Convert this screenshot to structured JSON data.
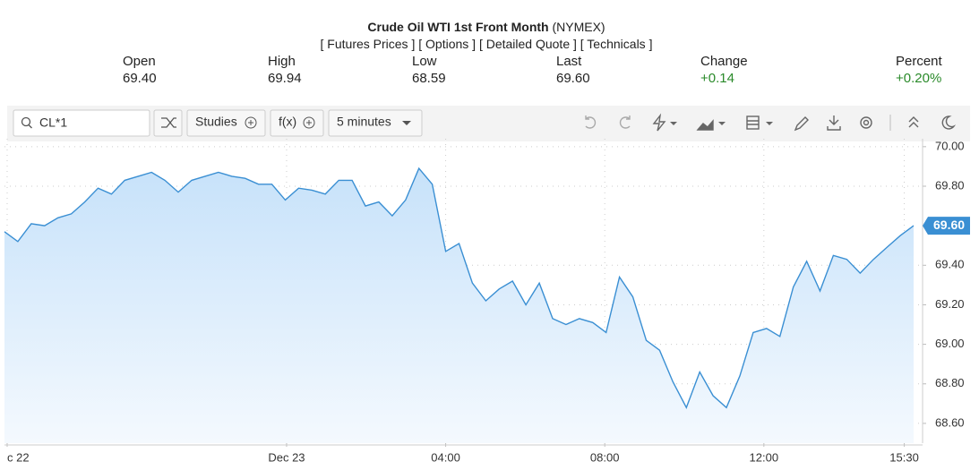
{
  "header": {
    "title": "Crude Oil WTI 1st Front Month",
    "exchange": "(NYMEX)",
    "links": [
      "[ Futures Prices ]",
      "[ Options ]",
      "[ Detailed Quote ]",
      "[ Technicals ]"
    ]
  },
  "quote": [
    {
      "label": "Open",
      "value": "69.40"
    },
    {
      "label": "High",
      "value": "69.94"
    },
    {
      "label": "Low",
      "value": "68.59"
    },
    {
      "label": "Last",
      "value": "69.60"
    },
    {
      "label": "Change",
      "value": "+0.14"
    },
    {
      "label": "Percent",
      "value": "+0.20%"
    }
  ],
  "toolbar": {
    "symbol": "CL*1",
    "studies": "Studies",
    "fx": "f(x)",
    "interval": "5 minutes"
  },
  "chart_data": {
    "type": "line",
    "color": "#3a8fd3",
    "values": [
      69.57,
      69.52,
      69.61,
      69.6,
      69.64,
      69.66,
      69.72,
      69.79,
      69.76,
      69.83,
      69.85,
      69.87,
      69.83,
      69.77,
      69.83,
      69.85,
      69.87,
      69.85,
      69.84,
      69.81,
      69.81,
      69.73,
      69.79,
      69.78,
      69.76,
      69.83,
      69.83,
      69.7,
      69.72,
      69.65,
      69.73,
      69.89,
      69.81,
      69.47,
      69.51,
      69.31,
      69.22,
      69.28,
      69.32,
      69.2,
      69.31,
      69.13,
      69.1,
      69.13,
      69.11,
      69.06,
      69.34,
      69.24,
      69.02,
      68.97,
      68.81,
      68.68,
      68.86,
      68.74,
      68.68,
      68.84,
      69.06,
      69.08,
      69.04,
      69.29,
      69.42,
      69.27,
      69.45,
      69.43,
      69.36,
      69.43,
      69.49,
      69.55,
      69.6
    ],
    "last_label": "69.60",
    "xlim": [
      0,
      68
    ],
    "xticks": [
      {
        "value": 0.2,
        "label": "c 22"
      },
      {
        "value": 21.1,
        "label": "Dec 23"
      },
      {
        "value": 33,
        "label": "04:00"
      },
      {
        "value": 44.9,
        "label": "08:00"
      },
      {
        "value": 56.8,
        "label": "12:00"
      },
      {
        "value": 67.3,
        "label": "15:30"
      }
    ],
    "ylim": [
      68.5,
      70.04
    ],
    "yticks": [
      {
        "value": 70,
        "label": "70.00"
      },
      {
        "value": 69.8,
        "label": "69.80"
      },
      {
        "value": 69.4,
        "label": "69.40"
      },
      {
        "value": 69.2,
        "label": "69.20"
      },
      {
        "value": 69,
        "label": "69.00"
      },
      {
        "value": 68.8,
        "label": "68.80"
      },
      {
        "value": 68.6,
        "label": "68.60"
      }
    ],
    "grid": true
  }
}
